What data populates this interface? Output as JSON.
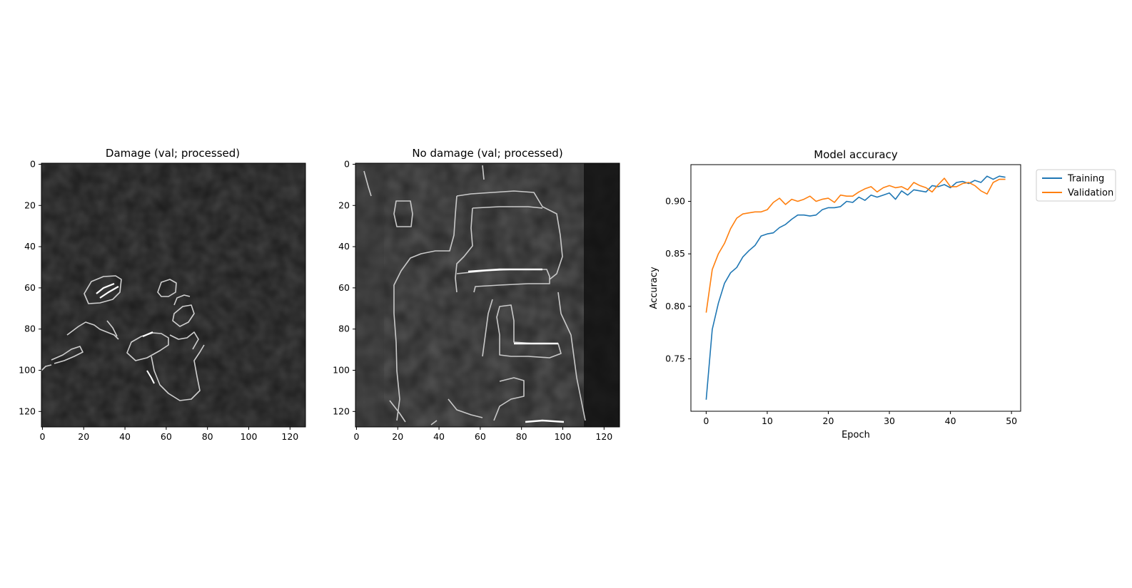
{
  "panel_damage": {
    "title": "Damage (val; processed)",
    "x_ticks": [
      "0",
      "20",
      "40",
      "60",
      "80",
      "100",
      "120"
    ],
    "y_ticks": [
      "0",
      "20",
      "40",
      "60",
      "80",
      "100",
      "120"
    ],
    "image_description_icon": "edge-detected-grayscale-image-icon"
  },
  "panel_nodamage": {
    "title": "No damage (val; processed)",
    "x_ticks": [
      "0",
      "20",
      "40",
      "60",
      "80",
      "100",
      "120"
    ],
    "y_ticks": [
      "0",
      "20",
      "40",
      "60",
      "80",
      "100",
      "120"
    ],
    "image_description_icon": "edge-detected-grayscale-image-icon"
  },
  "chart_data": {
    "type": "line",
    "title": "Model accuracy",
    "xlabel": "Epoch",
    "ylabel": "Accuracy",
    "xlim": [
      -2.5,
      51.5
    ],
    "ylim": [
      0.7,
      0.935
    ],
    "x_ticks": [
      0,
      10,
      20,
      30,
      40,
      50
    ],
    "y_ticks": [
      0.75,
      0.8,
      0.85,
      0.9
    ],
    "y_tick_labels": [
      "0.75",
      "0.80",
      "0.85",
      "0.90"
    ],
    "legend_position": "outside-top-right",
    "grid": false,
    "x": [
      0,
      1,
      2,
      3,
      4,
      5,
      6,
      7,
      8,
      9,
      10,
      11,
      12,
      13,
      14,
      15,
      16,
      17,
      18,
      19,
      20,
      21,
      22,
      23,
      24,
      25,
      26,
      27,
      28,
      29,
      30,
      31,
      32,
      33,
      34,
      35,
      36,
      37,
      38,
      39,
      40,
      41,
      42,
      43,
      44,
      45,
      46,
      47,
      48,
      49
    ],
    "series": [
      {
        "name": "Training",
        "color": "#1f77b4",
        "values": [
          0.711,
          0.778,
          0.803,
          0.822,
          0.832,
          0.837,
          0.847,
          0.853,
          0.858,
          0.867,
          0.869,
          0.87,
          0.875,
          0.878,
          0.883,
          0.887,
          0.887,
          0.886,
          0.887,
          0.892,
          0.894,
          0.894,
          0.895,
          0.9,
          0.899,
          0.904,
          0.901,
          0.906,
          0.904,
          0.906,
          0.908,
          0.902,
          0.91,
          0.906,
          0.911,
          0.91,
          0.909,
          0.915,
          0.914,
          0.916,
          0.913,
          0.918,
          0.919,
          0.917,
          0.92,
          0.918,
          0.924,
          0.921,
          0.924,
          0.923
        ]
      },
      {
        "name": "Validation",
        "color": "#ff7f0e",
        "values": [
          0.794,
          0.835,
          0.85,
          0.86,
          0.874,
          0.884,
          0.888,
          0.889,
          0.89,
          0.89,
          0.892,
          0.899,
          0.903,
          0.897,
          0.902,
          0.9,
          0.902,
          0.905,
          0.9,
          0.902,
          0.903,
          0.899,
          0.906,
          0.905,
          0.905,
          0.909,
          0.912,
          0.914,
          0.909,
          0.913,
          0.915,
          0.913,
          0.914,
          0.911,
          0.918,
          0.915,
          0.913,
          0.909,
          0.916,
          0.922,
          0.914,
          0.914,
          0.917,
          0.918,
          0.915,
          0.91,
          0.907,
          0.918,
          0.921,
          0.921
        ]
      }
    ]
  }
}
